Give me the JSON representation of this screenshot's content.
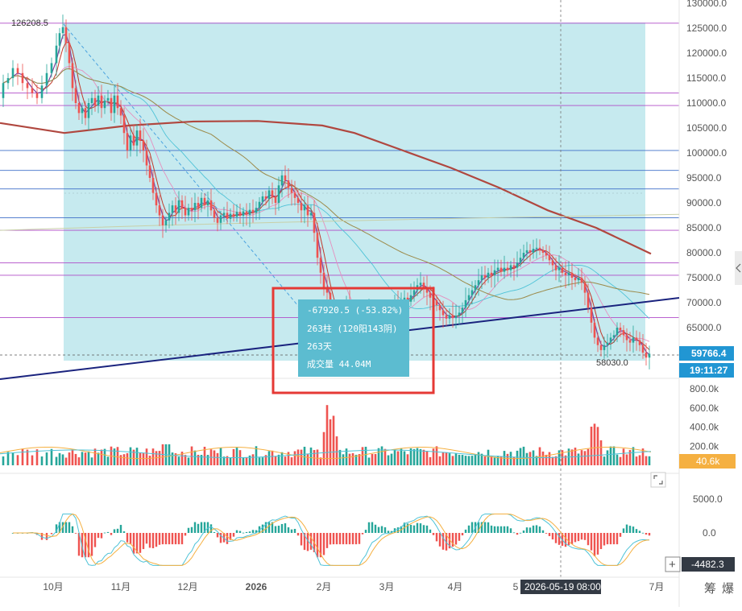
{
  "colors": {
    "up": "#26a69a",
    "down": "#ef5350",
    "measure_fill": "#b3e3ea",
    "trendline": "#1a237e",
    "ma_long": "#b0473f",
    "ma_mid": "#9c8a4a",
    "ma_cyan": "#4fc3d7",
    "ma_pink": "#e58fbf",
    "ma_purple": "#7b3f9c",
    "ma_red": "#c0392b",
    "hline_purple": "#b04cc8",
    "hline_blue": "#3f6fc8",
    "price_tag": "#2196d3",
    "volume_tag": "#f5b041",
    "tooltip_bg": "#5cbcd0",
    "highlight_box": "#e53935",
    "macd_dif": "#4fc3d7",
    "macd_dea": "#f5b041"
  },
  "chart_data": [
    {
      "type": "candlestick",
      "panel": "price",
      "y_ticks": [
        "130000.0",
        "125000.0",
        "120000.0",
        "115000.0",
        "110000.0",
        "105000.0",
        "100000.0",
        "95000.0",
        "90000.0",
        "85000.0",
        "80000.0",
        "75000.0",
        "70000.0",
        "65000.0"
      ],
      "ylim": [
        56000,
        131000
      ],
      "x_ticks": [
        "10月",
        "11月",
        "12月",
        "2026",
        "2月",
        "3月",
        "4月",
        "5",
        "7月"
      ],
      "close_points": [
        [
          0,
          111000
        ],
        [
          6,
          114000
        ],
        [
          12,
          115000
        ],
        [
          18,
          117000
        ],
        [
          24,
          116000
        ],
        [
          30,
          114000
        ],
        [
          36,
          113000
        ],
        [
          42,
          112000
        ],
        [
          48,
          111000
        ],
        [
          54,
          113500
        ],
        [
          60,
          116000
        ],
        [
          66,
          118000
        ],
        [
          72,
          121500
        ],
        [
          76,
          124000
        ],
        [
          80,
          125200
        ],
        [
          84,
          122000
        ],
        [
          88,
          118000
        ],
        [
          92,
          113000
        ],
        [
          96,
          110000
        ],
        [
          100,
          108000
        ],
        [
          104,
          109000
        ],
        [
          108,
          107000
        ],
        [
          112,
          110000
        ],
        [
          116,
          111000
        ],
        [
          120,
          109500
        ],
        [
          124,
          111500
        ],
        [
          128,
          109000
        ],
        [
          132,
          110500
        ],
        [
          136,
          111000
        ],
        [
          140,
          108000
        ],
        [
          144,
          111500
        ],
        [
          148,
          109000
        ],
        [
          152,
          107500
        ],
        [
          156,
          104000
        ],
        [
          160,
          100500
        ],
        [
          164,
          103500
        ],
        [
          168,
          101500
        ],
        [
          172,
          104500
        ],
        [
          176,
          102500
        ],
        [
          180,
          100500
        ],
        [
          184,
          97500
        ],
        [
          188,
          95000
        ],
        [
          192,
          92000
        ],
        [
          196,
          89500
        ],
        [
          200,
          87500
        ],
        [
          204,
          85500
        ],
        [
          208,
          86500
        ],
        [
          212,
          88000
        ],
        [
          216,
          89500
        ],
        [
          220,
          88000
        ],
        [
          224,
          90500
        ],
        [
          228,
          89000
        ],
        [
          232,
          87500
        ],
        [
          236,
          89000
        ],
        [
          240,
          88500
        ],
        [
          244,
          90000
        ],
        [
          248,
          89000
        ],
        [
          252,
          91000
        ],
        [
          256,
          89500
        ],
        [
          260,
          90500
        ],
        [
          264,
          88500
        ],
        [
          268,
          87000
        ],
        [
          272,
          86000
        ],
        [
          276,
          87500
        ],
        [
          280,
          88000
        ],
        [
          284,
          86800
        ],
        [
          288,
          87800
        ],
        [
          292,
          87200
        ],
        [
          296,
          88200
        ],
        [
          300,
          87400
        ],
        [
          304,
          88300
        ],
        [
          308,
          87600
        ],
        [
          312,
          88600
        ],
        [
          316,
          88000
        ],
        [
          320,
          89000
        ],
        [
          324,
          90200
        ],
        [
          328,
          91300
        ],
        [
          332,
          90800
        ],
        [
          336,
          92500
        ],
        [
          340,
          91200
        ],
        [
          344,
          90000
        ],
        [
          348,
          93500
        ],
        [
          352,
          95500
        ],
        [
          356,
          94500
        ],
        [
          360,
          93000
        ],
        [
          364,
          92000
        ],
        [
          368,
          91000
        ],
        [
          372,
          90000
        ],
        [
          376,
          88500
        ],
        [
          380,
          89500
        ],
        [
          384,
          87500
        ],
        [
          388,
          88000
        ],
        [
          392,
          84000
        ],
        [
          396,
          79000
        ],
        [
          400,
          76000
        ],
        [
          404,
          73000
        ],
        [
          408,
          72000
        ],
        [
          412,
          68500
        ],
        [
          416,
          66000
        ],
        [
          420,
          64500
        ],
        [
          424,
          66500
        ],
        [
          428,
          68500
        ],
        [
          432,
          70000
        ],
        [
          436,
          68000
        ],
        [
          440,
          67000
        ],
        [
          444,
          68500
        ],
        [
          448,
          67500
        ],
        [
          452,
          66500
        ],
        [
          456,
          67500
        ],
        [
          460,
          68500
        ],
        [
          464,
          67000
        ],
        [
          468,
          66000
        ],
        [
          472,
          67000
        ],
        [
          476,
          68000
        ],
        [
          480,
          67200
        ],
        [
          484,
          68200
        ],
        [
          488,
          69000
        ],
        [
          492,
          70000
        ],
        [
          496,
          69200
        ],
        [
          500,
          70500
        ],
        [
          504,
          71000
        ],
        [
          508,
          70200
        ],
        [
          512,
          71500
        ],
        [
          516,
          72500
        ],
        [
          520,
          73500
        ],
        [
          524,
          74000
        ],
        [
          528,
          73000
        ],
        [
          532,
          72000
        ],
        [
          536,
          71000
        ],
        [
          540,
          70500
        ],
        [
          544,
          69500
        ],
        [
          548,
          68500
        ],
        [
          552,
          67500
        ],
        [
          556,
          66800
        ],
        [
          560,
          67500
        ],
        [
          564,
          66900
        ],
        [
          568,
          67400
        ],
        [
          572,
          68000
        ],
        [
          576,
          69000
        ],
        [
          580,
          70500
        ],
        [
          584,
          71500
        ],
        [
          588,
          72500
        ],
        [
          592,
          73500
        ],
        [
          596,
          74500
        ],
        [
          600,
          75500
        ],
        [
          604,
          75000
        ],
        [
          608,
          76000
        ],
        [
          612,
          75500
        ],
        [
          616,
          76500
        ],
        [
          620,
          77000
        ],
        [
          624,
          76200
        ],
        [
          628,
          77000
        ],
        [
          632,
          76500
        ],
        [
          636,
          77500
        ],
        [
          640,
          77000
        ],
        [
          644,
          78000
        ],
        [
          648,
          79000
        ],
        [
          652,
          80000
        ],
        [
          656,
          80500
        ],
        [
          660,
          80000
        ],
        [
          664,
          80800
        ],
        [
          668,
          81000
        ],
        [
          672,
          80500
        ],
        [
          676,
          80000
        ],
        [
          680,
          79500
        ],
        [
          684,
          78500
        ],
        [
          688,
          77500
        ],
        [
          692,
          76500
        ],
        [
          696,
          77000
        ],
        [
          700,
          76000
        ],
        [
          704,
          75500
        ],
        [
          708,
          76000
        ],
        [
          712,
          75000
        ],
        [
          716,
          74500
        ],
        [
          720,
          75000
        ],
        [
          724,
          74000
        ],
        [
          728,
          72000
        ],
        [
          732,
          69000
        ],
        [
          736,
          66000
        ],
        [
          740,
          63000
        ],
        [
          744,
          61500
        ],
        [
          748,
          60500
        ],
        [
          752,
          61500
        ],
        [
          756,
          62000
        ],
        [
          760,
          63000
        ],
        [
          764,
          63500
        ],
        [
          768,
          65000
        ],
        [
          772,
          64500
        ],
        [
          776,
          63500
        ],
        [
          780,
          62500
        ],
        [
          784,
          62000
        ],
        [
          788,
          63000
        ],
        [
          792,
          62500
        ],
        [
          796,
          61500
        ],
        [
          800,
          60000
        ],
        [
          804,
          59000
        ],
        [
          808,
          59766
        ]
      ],
      "labels": {
        "high_marker": "126208.5",
        "low_marker": "58030.0",
        "last_price": "59766.4",
        "countdown": "19:11:27"
      },
      "measure_tooltip": {
        "change": "-67920.5 (-53.82%)",
        "bars": "263柱 (120阳143阴)",
        "days": "263天",
        "volume": "成交量 44.04M"
      },
      "horizontal_levels": [
        {
          "price": 126000,
          "color": "purple"
        },
        {
          "price": 112000,
          "color": "purple"
        },
        {
          "price": 109500,
          "color": "purple"
        },
        {
          "price": 100500,
          "color": "blue"
        },
        {
          "price": 96500,
          "color": "blue"
        },
        {
          "price": 92800,
          "color": "blue"
        },
        {
          "price": 87000,
          "color": "blue"
        },
        {
          "price": 84500,
          "color": "purple"
        },
        {
          "price": 78000,
          "color": "purple"
        },
        {
          "price": 75500,
          "color": "purple"
        },
        {
          "price": 67000,
          "color": "purple"
        }
      ],
      "crosshair_date": "2026-05-19 08:00"
    },
    {
      "type": "bar",
      "panel": "volume",
      "y_ticks": [
        "800.0k",
        "600.0k",
        "400.0k",
        "200.0k"
      ],
      "ylim": [
        0,
        900
      ],
      "last_volume": "40.6k"
    },
    {
      "type": "bar",
      "panel": "macd",
      "y_ticks": [
        "5000.0",
        "0.0"
      ],
      "ylim": [
        -5500,
        5500
      ],
      "last_value": "-4482.3"
    }
  ],
  "ui": {
    "bottom_right_1": "筹",
    "bottom_right_2": "爆",
    "plus_icon": "plus-icon",
    "expand_icon": "expand-icon",
    "right_collapse_icon": "chevron-left-icon"
  }
}
